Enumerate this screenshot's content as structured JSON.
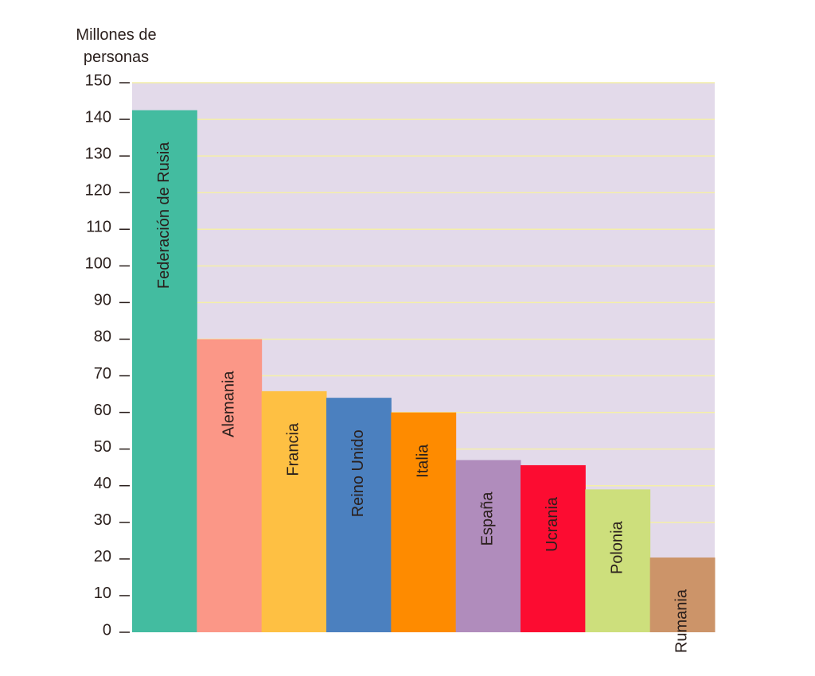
{
  "chart_data": {
    "type": "bar",
    "ylabel": "Millones de personas",
    "categories": [
      "Federación de Rusia",
      "Alemania",
      "Francia",
      "Reino Unido",
      "Italia",
      "España",
      "Ucrania",
      "Polonia",
      "Rumania"
    ],
    "values": [
      142.5,
      80,
      65.8,
      64,
      60,
      47,
      45.6,
      39,
      20.4
    ],
    "colors": [
      "#43bca0",
      "#fb9787",
      "#fec043",
      "#4b80bf",
      "#fe8b00",
      "#b08cbc",
      "#fc0c31",
      "#cddf7c",
      "#cc9469"
    ],
    "ylim": [
      0,
      150
    ],
    "yticks": [
      0,
      10,
      20,
      30,
      40,
      50,
      60,
      70,
      80,
      90,
      100,
      110,
      120,
      130,
      140,
      150
    ],
    "grid": true
  }
}
